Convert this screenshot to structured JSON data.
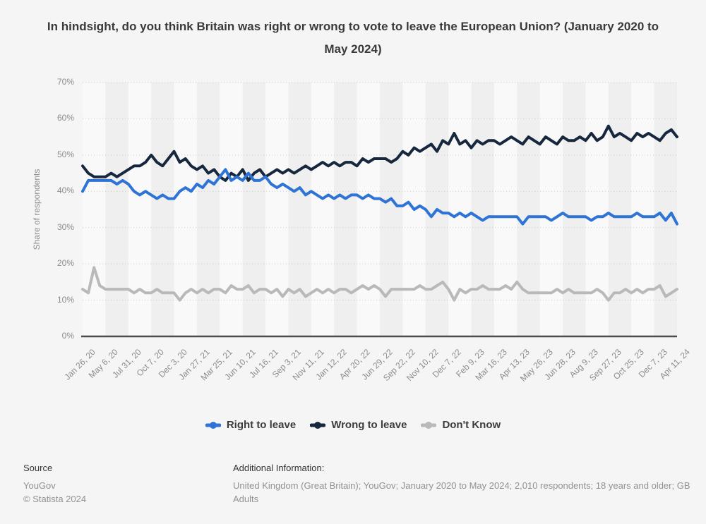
{
  "title": "In hindsight, do you think Britain was right or wrong to vote to leave the European Union? (January 2020 to May 2024)",
  "chart_data": {
    "type": "line",
    "title": "In hindsight, do you think Britain was right or wrong to vote to leave the European Union? (January 2020 to May 2024)",
    "xlabel": "",
    "ylabel": "Share of respondents",
    "ylim": [
      0,
      70
    ],
    "yticks": [
      "0%",
      "10%",
      "20%",
      "30%",
      "40%",
      "50%",
      "60%",
      "70%"
    ],
    "grid": "horizontal-dotted",
    "plot_band_colors": [
      "#f9f9f9",
      "#efefef"
    ],
    "legend_position": "bottom",
    "x_tick_labels": [
      "Jan 26, 20",
      "May 6, 20",
      "Jul 31, 20",
      "Oct 7, 20",
      "Dec 3, 20",
      "Jan 27, 21",
      "Mar 25, 21",
      "Jun 10, 21",
      "Jul 16, 21",
      "Sep 3, 21",
      "Nov 11, 21",
      "Jan 12, 22",
      "Apr 20, 22",
      "Jun 29, 22",
      "Sep 22, 22",
      "Nov 10, 22",
      "Dec 7, 22",
      "Feb 9, 23",
      "Mar 16, 23",
      "Apr 13, 23",
      "May 26, 23",
      "Jun 28, 23",
      "Aug 9, 23",
      "Sep 27, 23",
      "Oct 25, 23",
      "Dec 7, 23",
      "Apr 11, 24"
    ],
    "label_every": 4,
    "series": [
      {
        "name": "Right to leave",
        "color": "#2e73d6",
        "values": [
          40,
          43,
          43,
          43,
          43,
          43,
          42,
          43,
          42,
          40,
          39,
          40,
          39,
          38,
          39,
          38,
          38,
          40,
          41,
          40,
          42,
          41,
          43,
          42,
          44,
          46,
          43,
          44,
          43,
          45,
          43,
          43,
          44,
          42,
          41,
          42,
          41,
          40,
          41,
          39,
          40,
          39,
          38,
          39,
          38,
          39,
          38,
          39,
          39,
          38,
          39,
          38,
          38,
          37,
          38,
          36,
          36,
          37,
          35,
          36,
          35,
          33,
          35,
          34,
          34,
          33,
          34,
          33,
          34,
          33,
          32,
          33,
          33,
          33,
          33,
          33,
          33,
          31,
          33,
          33,
          33,
          33,
          32,
          33,
          34,
          33,
          33,
          33,
          33,
          32,
          33,
          33,
          34,
          33,
          33,
          33,
          33,
          34,
          33,
          33,
          33,
          34,
          32,
          34,
          31
        ]
      },
      {
        "name": "Wrong to leave",
        "color": "#17273e",
        "values": [
          47,
          45,
          44,
          44,
          44,
          45,
          44,
          45,
          46,
          47,
          47,
          48,
          50,
          48,
          47,
          49,
          51,
          48,
          49,
          47,
          46,
          47,
          45,
          46,
          44,
          43,
          45,
          44,
          46,
          43,
          45,
          46,
          44,
          45,
          46,
          45,
          46,
          45,
          46,
          47,
          46,
          47,
          48,
          47,
          48,
          47,
          48,
          48,
          47,
          49,
          48,
          49,
          49,
          49,
          48,
          49,
          51,
          50,
          52,
          51,
          52,
          53,
          51,
          54,
          53,
          56,
          53,
          54,
          52,
          54,
          53,
          54,
          54,
          53,
          54,
          55,
          54,
          53,
          55,
          54,
          53,
          55,
          54,
          53,
          55,
          54,
          54,
          55,
          54,
          56,
          54,
          55,
          58,
          55,
          56,
          55,
          54,
          56,
          55,
          56,
          55,
          54,
          56,
          57,
          55
        ]
      },
      {
        "name": "Don't Know",
        "color": "#b9b9b9",
        "values": [
          13,
          12,
          19,
          14,
          13,
          13,
          13,
          13,
          13,
          12,
          13,
          12,
          12,
          13,
          12,
          12,
          12,
          10,
          12,
          13,
          12,
          13,
          12,
          13,
          13,
          12,
          14,
          13,
          13,
          14,
          12,
          13,
          13,
          12,
          13,
          11,
          13,
          12,
          13,
          11,
          12,
          13,
          12,
          13,
          12,
          13,
          13,
          12,
          13,
          14,
          13,
          14,
          13,
          11,
          13,
          13,
          13,
          13,
          13,
          14,
          13,
          13,
          14,
          15,
          13,
          10,
          13,
          12,
          13,
          13,
          14,
          13,
          13,
          13,
          14,
          13,
          15,
          13,
          12,
          12,
          12,
          12,
          12,
          13,
          12,
          13,
          12,
          12,
          12,
          12,
          13,
          12,
          10,
          12,
          12,
          13,
          12,
          13,
          12,
          13,
          13,
          14,
          11,
          12,
          13
        ]
      }
    ]
  },
  "footer": {
    "source_label": "Source",
    "source_name": "YouGov",
    "copyright": "© Statista 2024",
    "additional_label": "Additional Information:",
    "additional_text": "United Kingdom (Great Britain); YouGov; January 2020 to May 2024; 2,010 respondents; 18 years and older; GB Adults"
  }
}
